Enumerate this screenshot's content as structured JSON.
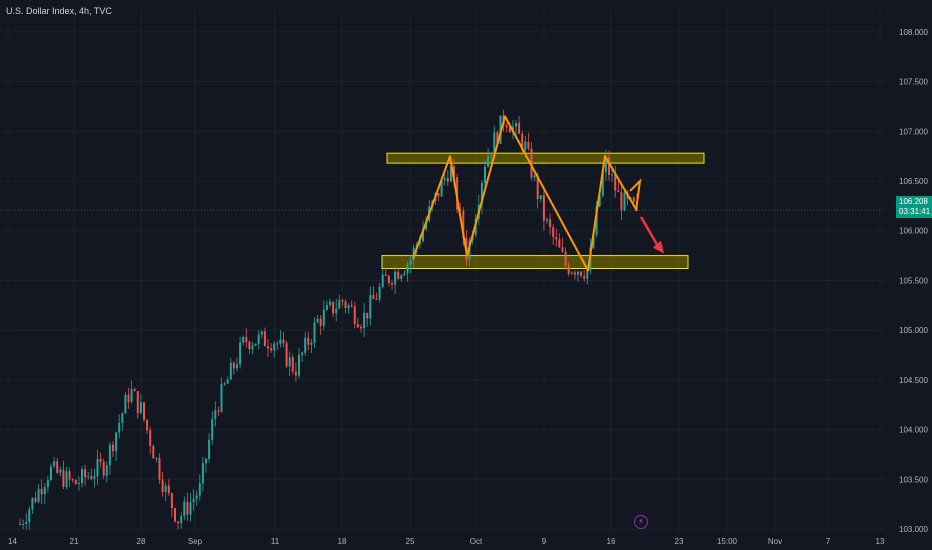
{
  "header": {
    "title": "U.S. Dollar Index, 4h, TVC"
  },
  "colors": {
    "background": "#131722",
    "up": "#26a69a",
    "down": "#ef5350",
    "grid": "#1e222d",
    "axis_text": "#b2b5be",
    "zone_fill": "#6b6400",
    "zone_stroke": "#f5e21b",
    "pattern_line": "#ff9800",
    "arrow": "#f23645",
    "last_price_bg": "#089981"
  },
  "last_price": {
    "value": "106.208",
    "countdown": "03:31:41"
  },
  "chart_data": {
    "type": "candlestick",
    "title": "U.S. Dollar Index, 4h, TVC",
    "y_axis": {
      "side": "right",
      "ylim": [
        102.97,
        108.22
      ],
      "ticks": [
        "103.000",
        "103.500",
        "104.000",
        "104.500",
        "105.000",
        "105.500",
        "106.000",
        "106.500",
        "107.000",
        "107.500",
        "108.000"
      ]
    },
    "x_axis": {
      "ticks": [
        "14",
        "21",
        "28",
        "Sep",
        "11",
        "18",
        "25",
        "Oct",
        "9",
        "16",
        "23",
        "15:00",
        "Nov",
        "7",
        "13"
      ]
    },
    "grid": true,
    "ohlc_trajectory": [
      {
        "x": "14",
        "close": 103.05
      },
      {
        "x": "17",
        "close": 103.6
      },
      {
        "x": "21",
        "close": 103.45
      },
      {
        "x": "24",
        "close": 103.65
      },
      {
        "x": "25",
        "close": 104.4
      },
      {
        "x": "28",
        "close": 104.2
      },
      {
        "x": "30",
        "close": 103.4
      },
      {
        "x": "31",
        "close": 103.1
      },
      {
        "x": "Sep",
        "close": 103.4
      },
      {
        "x": "4",
        "close": 104.2
      },
      {
        "x": "6",
        "close": 104.9
      },
      {
        "x": "11",
        "close": 104.9
      },
      {
        "x": "13",
        "close": 104.6
      },
      {
        "x": "15",
        "close": 105.1
      },
      {
        "x": "18",
        "close": 105.3
      },
      {
        "x": "20",
        "close": 105.1
      },
      {
        "x": "22",
        "close": 105.5
      },
      {
        "x": "25",
        "close": 105.7
      },
      {
        "x": "26",
        "close": 106.2
      },
      {
        "x": "28",
        "close": 106.65
      },
      {
        "x": "29",
        "close": 105.75
      },
      {
        "x": "Oct",
        "close": 106.7
      },
      {
        "x": "3",
        "close": 107.15
      },
      {
        "x": "5",
        "close": 106.85
      },
      {
        "x": "9",
        "close": 106.1
      },
      {
        "x": "12",
        "close": 105.65
      },
      {
        "x": "13",
        "close": 105.6
      },
      {
        "x": "16",
        "close": 106.7
      },
      {
        "x": "17",
        "close": 106.3
      },
      {
        "x": "18",
        "close": 106.208
      }
    ],
    "annotations": {
      "resistance_zone": [
        106.68,
        106.78
      ],
      "support_zone": [
        105.62,
        105.75
      ],
      "pattern_path": [
        {
          "x": "25",
          "price": 105.72
        },
        {
          "x": "28",
          "price": 106.75
        },
        {
          "x": "29",
          "price": 105.75
        },
        {
          "x": "3",
          "price": 107.15
        },
        {
          "x": "13",
          "price": 105.6
        },
        {
          "x": "16",
          "price": 106.75
        },
        {
          "x": "18",
          "price": 106.2
        }
      ],
      "forecast_arrow": {
        "from_price": 106.2,
        "to_price": 105.75,
        "direction": "down"
      }
    }
  }
}
